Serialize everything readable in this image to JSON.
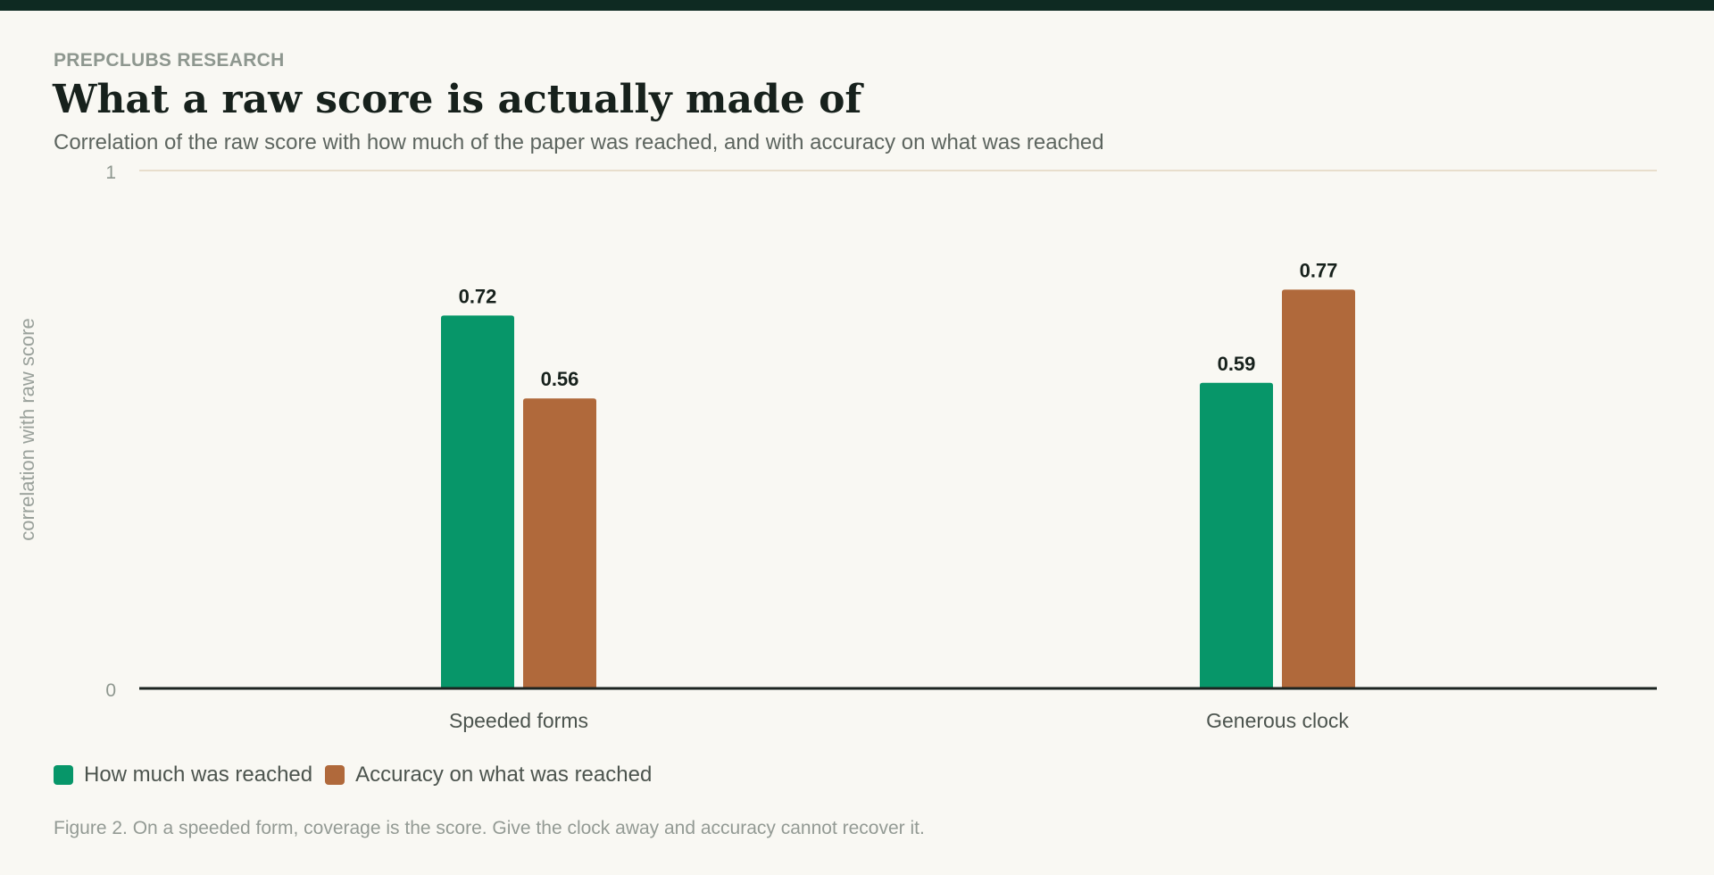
{
  "header": {
    "eyebrow": "PREPCLUBS RESEARCH",
    "title": "What a raw score is actually made of",
    "subtitle": "Correlation of the raw score with how much of the paper was reached, and with accuracy on what was reached"
  },
  "chart_data": {
    "type": "bar",
    "categories": [
      "Speeded forms",
      "Generous clock"
    ],
    "series": [
      {
        "name": "How much was reached",
        "values": [
          0.72,
          0.59
        ],
        "color": "#079669"
      },
      {
        "name": "Accuracy on what was reached",
        "values": [
          0.56,
          0.77
        ],
        "color": "#b0693b"
      }
    ],
    "ylabel": "correlation with raw score",
    "ylim": [
      0,
      1
    ],
    "yticks": [
      "0",
      "1"
    ],
    "data_labels": true,
    "legend_position": "bottom-left",
    "grid": false
  },
  "caption": "Figure 2. On a speeded form, coverage is the score. Give the clock away and accuracy cannot recover it."
}
